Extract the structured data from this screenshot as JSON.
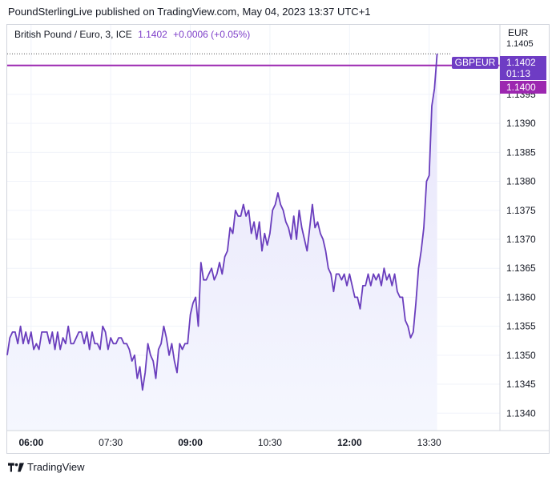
{
  "header": {
    "published": "PoundSterlingLive published on TradingView.com, May 04, 2023 13:37 UTC+1"
  },
  "symbol": {
    "name": "British Pound / Euro, 3, ICE",
    "price": "1.1402",
    "change": "+0.0006 (+0.05%)"
  },
  "axis": {
    "currency": "EUR",
    "top_partial": "1.1405"
  },
  "badges": {
    "ticker": "GBPEUR",
    "price": "1.1402",
    "countdown": "01:13",
    "level": "1.1400"
  },
  "footer": {
    "brand": "TradingView"
  },
  "colors": {
    "line": "#6a3ebd",
    "level_line": "#9c27b0",
    "badge_dark": "#6e3cc4",
    "badge_level": "#9c27b0",
    "area_top": "#e7e4fb",
    "area_bottom": "#f5f7fe",
    "grid": "#f0f3fa"
  },
  "chart_data": {
    "type": "area",
    "title": "British Pound / Euro, 3, ICE",
    "ylim": [
      1.1337,
      1.1407
    ],
    "y_ticks": [
      "1.1340",
      "1.1345",
      "1.1350",
      "1.1355",
      "1.1360",
      "1.1365",
      "1.1370",
      "1.1375",
      "1.1380",
      "1.1385",
      "1.1390",
      "1.1395"
    ],
    "x_ticks": [
      {
        "label": "06:00",
        "minutes": 360,
        "bold": true
      },
      {
        "label": "07:30",
        "minutes": 450,
        "bold": false
      },
      {
        "label": "09:00",
        "minutes": 540,
        "bold": true
      },
      {
        "label": "10:30",
        "minutes": 630,
        "bold": false
      },
      {
        "label": "12:00",
        "minutes": 720,
        "bold": true
      },
      {
        "label": "13:30",
        "minutes": 810,
        "bold": false
      }
    ],
    "xlim_minutes": [
      333,
      890
    ],
    "x_minutes_start": 333,
    "x_step_minutes": 3,
    "level_line": 1.14,
    "series": [
      {
        "values": [
          1.135,
          1.1353,
          1.1354,
          1.1354,
          1.1352,
          1.1355,
          1.1352,
          1.1354,
          1.1352,
          1.1354,
          1.1351,
          1.1352,
          1.1351,
          1.1354,
          1.1354,
          1.1354,
          1.1352,
          1.1354,
          1.1351,
          1.1354,
          1.1351,
          1.1353,
          1.1352,
          1.1355,
          1.1352,
          1.1352,
          1.1353,
          1.1354,
          1.1354,
          1.1352,
          1.1354,
          1.1351,
          1.1354,
          1.1352,
          1.1352,
          1.1351,
          1.1355,
          1.1354,
          1.1351,
          1.1353,
          1.1352,
          1.1352,
          1.1353,
          1.1353,
          1.1352,
          1.1352,
          1.1351,
          1.1349,
          1.135,
          1.1346,
          1.1348,
          1.1344,
          1.1347,
          1.1352,
          1.135,
          1.1349,
          1.1346,
          1.1351,
          1.1352,
          1.1355,
          1.1353,
          1.135,
          1.1352,
          1.1349,
          1.1347,
          1.1352,
          1.1351,
          1.1352,
          1.1352,
          1.1357,
          1.1359,
          1.136,
          1.1355,
          1.1366,
          1.1363,
          1.1363,
          1.1364,
          1.1365,
          1.1363,
          1.1364,
          1.1366,
          1.1364,
          1.1367,
          1.1368,
          1.1372,
          1.1371,
          1.1375,
          1.1374,
          1.1374,
          1.1376,
          1.1374,
          1.1375,
          1.1371,
          1.1373,
          1.137,
          1.1373,
          1.1368,
          1.1371,
          1.1369,
          1.1371,
          1.1375,
          1.1376,
          1.1378,
          1.1376,
          1.1375,
          1.1373,
          1.1372,
          1.137,
          1.1374,
          1.137,
          1.1375,
          1.1372,
          1.137,
          1.1368,
          1.1372,
          1.1376,
          1.1372,
          1.1373,
          1.1371,
          1.137,
          1.1368,
          1.1365,
          1.1364,
          1.1361,
          1.1364,
          1.1364,
          1.1363,
          1.1364,
          1.1362,
          1.1364,
          1.1362,
          1.136,
          1.136,
          1.1358,
          1.1362,
          1.1362,
          1.1364,
          1.1362,
          1.1364,
          1.1363,
          1.1364,
          1.1362,
          1.1365,
          1.1363,
          1.1364,
          1.1362,
          1.1364,
          1.1361,
          1.136,
          1.136,
          1.1356,
          1.1355,
          1.1353,
          1.1354,
          1.1359,
          1.1365,
          1.1368,
          1.1372,
          1.138,
          1.1381,
          1.1393,
          1.1396,
          1.1402
        ]
      }
    ]
  }
}
